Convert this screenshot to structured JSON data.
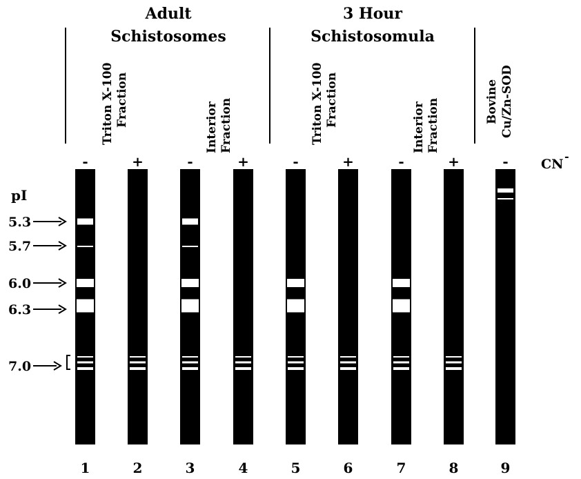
{
  "groups": [
    {
      "line1": "Adult",
      "line2": "Schistosomes"
    },
    {
      "line1": "3 Hour",
      "line2": "Schistosomula"
    }
  ],
  "fraction_labels": [
    {
      "line1": "Triton X-100",
      "line2": "Fraction"
    },
    {
      "line1": "Interior",
      "line2": "Fraction"
    },
    {
      "line1": "Triton X-100",
      "line2": "Fraction"
    },
    {
      "line1": "Interior",
      "line2": "Fraction"
    },
    {
      "line1": "Bovine",
      "line2": "Cu/Zn-SOD"
    }
  ],
  "cn_label": "CN",
  "cn_superscript": "-",
  "pi_label": "pI",
  "pi_markers": [
    "5.3",
    "5.7",
    "6.0",
    "6.3",
    "7.0"
  ],
  "lanes": [
    {
      "number": "1",
      "sign": "-",
      "bands": [
        "5.3",
        "5.7",
        "6.0",
        "6.3",
        "7.0a",
        "7.0b",
        "7.0c"
      ]
    },
    {
      "number": "2",
      "sign": "+",
      "bands": [
        "7.0a",
        "7.0b",
        "7.0c"
      ]
    },
    {
      "number": "3",
      "sign": "-",
      "bands": [
        "5.3",
        "5.7",
        "6.0",
        "6.3",
        "7.0a",
        "7.0b",
        "7.0c"
      ]
    },
    {
      "number": "4",
      "sign": "+",
      "bands": [
        "7.0a",
        "7.0b",
        "7.0c"
      ]
    },
    {
      "number": "5",
      "sign": "-",
      "bands": [
        "6.0",
        "6.3",
        "7.0a",
        "7.0b",
        "7.0c"
      ]
    },
    {
      "number": "6",
      "sign": "+",
      "bands": [
        "7.0a",
        "7.0b",
        "7.0c"
      ]
    },
    {
      "number": "7",
      "sign": "-",
      "bands": [
        "6.0",
        "6.3",
        "7.0a",
        "7.0b",
        "7.0c"
      ]
    },
    {
      "number": "8",
      "sign": "+",
      "bands": [
        "7.0a",
        "7.0b",
        "7.0c"
      ]
    },
    {
      "number": "9",
      "sign": "-",
      "bands": [
        "bovine-a",
        "bovine-b"
      ]
    }
  ]
}
